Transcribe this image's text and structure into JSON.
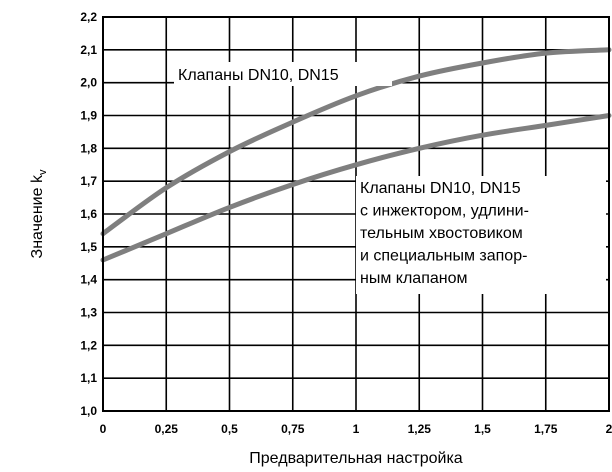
{
  "chart_data": {
    "type": "line",
    "xlabel": "Предварительная настройка",
    "ylabel_main": "Значение k",
    "ylabel_sub": "v",
    "xlim": [
      0,
      2
    ],
    "ylim": [
      1.0,
      2.2
    ],
    "grid": true,
    "x_ticks": [
      "0",
      "0,25",
      "0,5",
      "0,75",
      "1",
      "1,25",
      "1,5",
      "1,75",
      "2"
    ],
    "y_ticks": [
      "1,0",
      "1,1",
      "1,2",
      "1,3",
      "1,4",
      "1,5",
      "1,6",
      "1,7",
      "1,8",
      "1,9",
      "2,0",
      "2,1",
      "2,2"
    ],
    "line_color": "#7f7f7f",
    "series": [
      {
        "x": [
          0,
          0.25,
          0.5,
          0.75,
          1.0,
          1.25,
          1.5,
          1.75,
          2.0
        ],
        "y": [
          1.54,
          1.68,
          1.79,
          1.88,
          1.96,
          2.02,
          2.06,
          2.09,
          2.1
        ]
      },
      {
        "x": [
          0,
          0.25,
          0.5,
          0.75,
          1.0,
          1.25,
          1.5,
          1.75,
          2.0
        ],
        "y": [
          1.46,
          1.54,
          1.62,
          1.69,
          1.75,
          1.8,
          1.84,
          1.87,
          1.9
        ]
      }
    ],
    "annotations": [
      {
        "lines": [
          "Клапаны DN10, DN15"
        ]
      },
      {
        "lines": [
          "Клапаны DN10, DN15",
          "с инжектором, удлини-",
          "тельным хвостовиком",
          "и специальным запор-",
          "ным клапаном"
        ]
      }
    ]
  }
}
